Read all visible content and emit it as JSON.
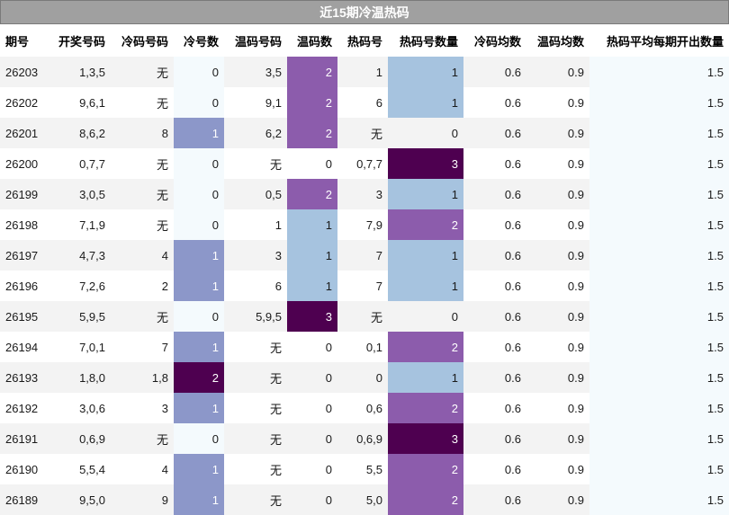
{
  "title": "近15期冷温热码",
  "columns": [
    "期号",
    "开奖号码",
    "冷码号码",
    "冷号数",
    "温码号码",
    "温码数",
    "热码号",
    "热码号数量",
    "冷码均数",
    "温码均数",
    "热码平均每期开出数量"
  ],
  "rows": [
    [
      "26203",
      "1,3,5",
      "无",
      "0",
      "3,5",
      "2",
      "1",
      "1",
      "0.6",
      "0.9",
      "1.5"
    ],
    [
      "26202",
      "9,6,1",
      "无",
      "0",
      "9,1",
      "2",
      "6",
      "1",
      "0.6",
      "0.9",
      "1.5"
    ],
    [
      "26201",
      "8,6,2",
      "8",
      "1",
      "6,2",
      "2",
      "无",
      "0",
      "0.6",
      "0.9",
      "1.5"
    ],
    [
      "26200",
      "0,7,7",
      "无",
      "0",
      "无",
      "0",
      "0,7,7",
      "3",
      "0.6",
      "0.9",
      "1.5"
    ],
    [
      "26199",
      "3,0,5",
      "无",
      "0",
      "0,5",
      "2",
      "3",
      "1",
      "0.6",
      "0.9",
      "1.5"
    ],
    [
      "26198",
      "7,1,9",
      "无",
      "0",
      "1",
      "1",
      "7,9",
      "2",
      "0.6",
      "0.9",
      "1.5"
    ],
    [
      "26197",
      "4,7,3",
      "4",
      "1",
      "3",
      "1",
      "7",
      "1",
      "0.6",
      "0.9",
      "1.5"
    ],
    [
      "26196",
      "7,2,6",
      "2",
      "1",
      "6",
      "1",
      "7",
      "1",
      "0.6",
      "0.9",
      "1.5"
    ],
    [
      "26195",
      "5,9,5",
      "无",
      "0",
      "5,9,5",
      "3",
      "无",
      "0",
      "0.6",
      "0.9",
      "1.5"
    ],
    [
      "26194",
      "7,0,1",
      "7",
      "1",
      "无",
      "0",
      "0,1",
      "2",
      "0.6",
      "0.9",
      "1.5"
    ],
    [
      "26193",
      "1,8,0",
      "1,8",
      "2",
      "无",
      "0",
      "0",
      "1",
      "0.6",
      "0.9",
      "1.5"
    ],
    [
      "26192",
      "3,0,6",
      "3",
      "1",
      "无",
      "0",
      "0,6",
      "2",
      "0.6",
      "0.9",
      "1.5"
    ],
    [
      "26191",
      "0,6,9",
      "无",
      "0",
      "无",
      "0",
      "0,6,9",
      "3",
      "0.6",
      "0.9",
      "1.5"
    ],
    [
      "26190",
      "5,5,4",
      "4",
      "1",
      "无",
      "0",
      "5,5",
      "2",
      "0.6",
      "0.9",
      "1.5"
    ],
    [
      "26189",
      "9,5,0",
      "9",
      "1",
      "无",
      "0",
      "5,0",
      "2",
      "0.6",
      "0.9",
      "1.5"
    ]
  ],
  "colors": {
    "title_bg": "#a0a0a0",
    "cold_1": "#8c97c9",
    "level_1": "#a6c3df",
    "level_2": "#8c5cac",
    "level_3": "#4e0050"
  }
}
